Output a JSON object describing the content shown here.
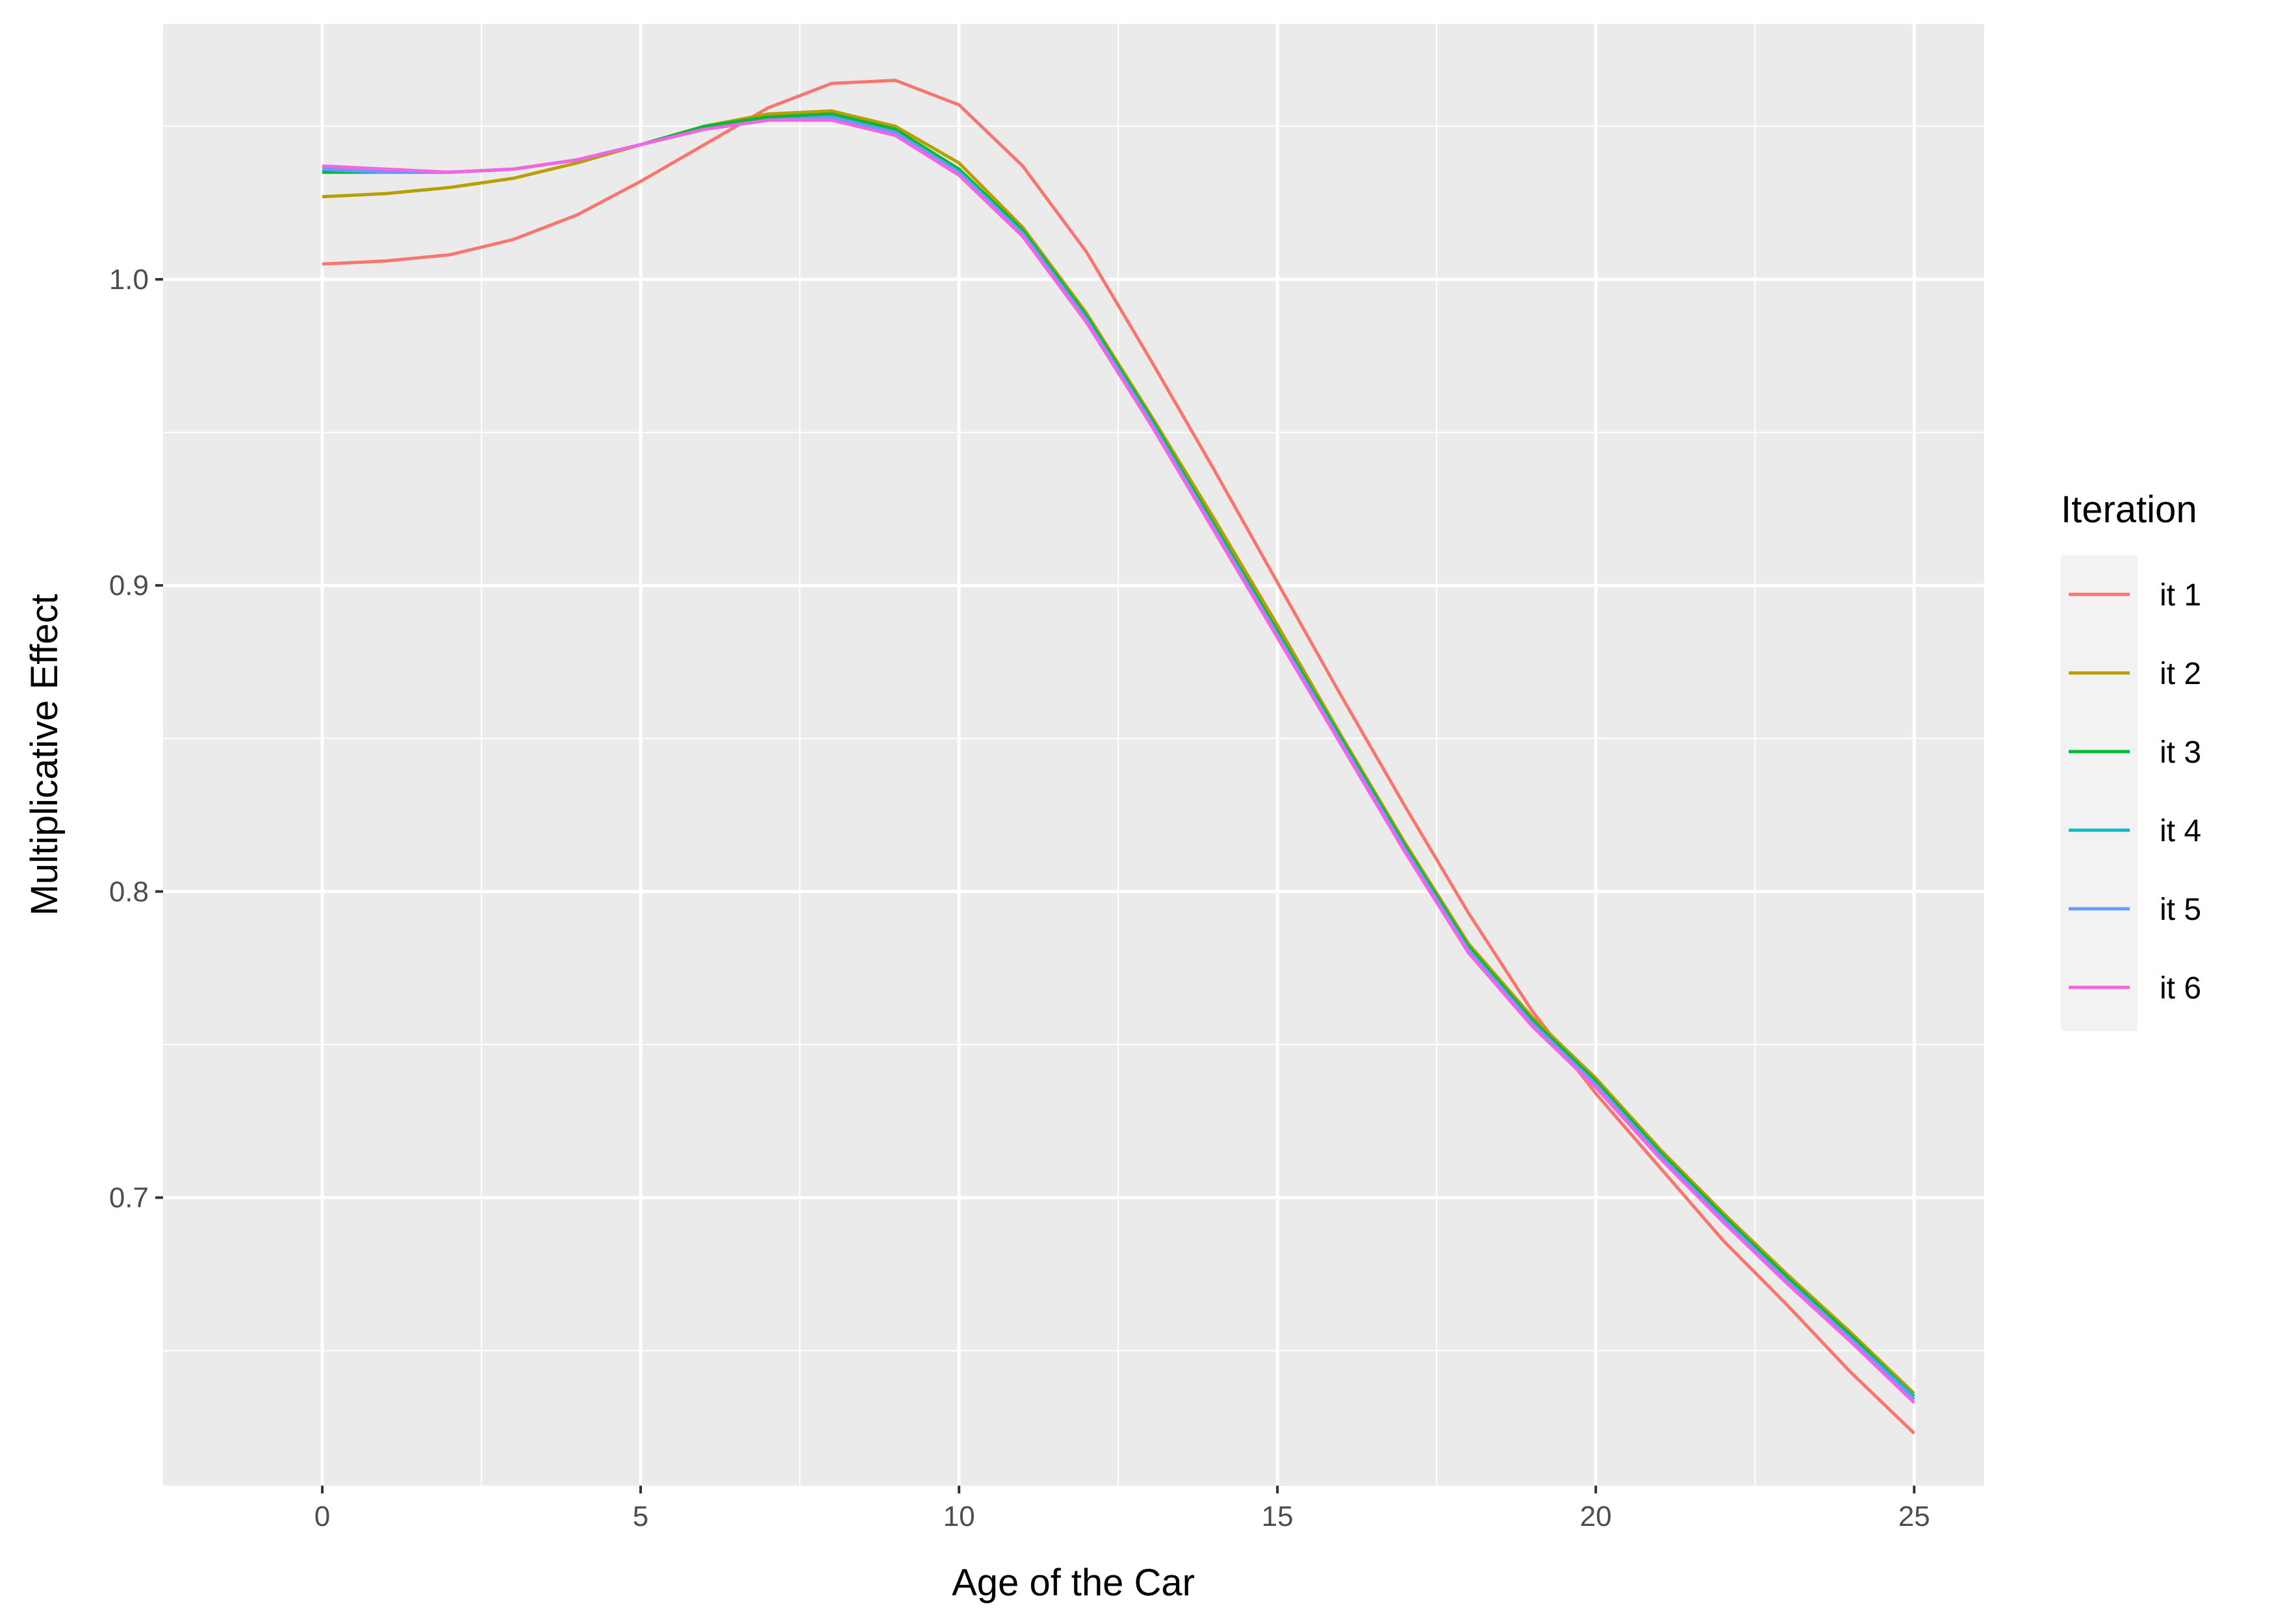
{
  "chart_data": {
    "type": "line",
    "title": "",
    "xlabel": "Age of the Car",
    "ylabel": "Multiplicative Effect",
    "xlim": [
      -2.5,
      26.1
    ],
    "ylim": [
      0.6059,
      1.0834
    ],
    "x_ticks": [
      "0",
      "5",
      "10",
      "15",
      "20",
      "25"
    ],
    "x_tick_values": [
      0,
      5,
      10,
      15,
      20,
      25
    ],
    "y_ticks": [
      "0.7",
      "0.8",
      "0.9",
      "1.0"
    ],
    "y_tick_values": [
      0.7,
      0.8,
      0.9,
      1.0
    ],
    "y_minor_values": [
      0.65,
      0.75,
      0.85,
      0.95,
      1.05
    ],
    "x_minor_values": [
      2.5,
      7.5,
      12.5,
      17.5,
      22.5
    ],
    "grid": true,
    "legend_title": "Iteration",
    "legend_position": "right",
    "x": [
      0,
      1,
      2,
      3,
      4,
      5,
      6,
      7,
      8,
      9,
      10,
      11,
      12,
      13,
      14,
      15,
      16,
      17,
      18,
      19,
      20,
      21,
      22,
      23,
      24,
      25
    ],
    "series": [
      {
        "name": "it 1",
        "color": "#F8766D",
        "values": [
          1.005,
          1.006,
          1.008,
          1.013,
          1.021,
          1.032,
          1.044,
          1.056,
          1.064,
          1.065,
          1.057,
          1.037,
          1.009,
          0.974,
          0.938,
          0.901,
          0.864,
          0.828,
          0.793,
          0.761,
          0.734,
          0.71,
          0.686,
          0.665,
          0.643,
          0.623
        ]
      },
      {
        "name": "it 2",
        "color": "#B79F00",
        "values": [
          1.027,
          1.028,
          1.03,
          1.033,
          1.038,
          1.044,
          1.05,
          1.054,
          1.055,
          1.05,
          1.038,
          1.017,
          0.989,
          0.956,
          0.922,
          0.887,
          0.851,
          0.816,
          0.783,
          0.759,
          0.739,
          0.716,
          0.695,
          0.675,
          0.656,
          0.636
        ]
      },
      {
        "name": "it 3",
        "color": "#00BA38",
        "values": [
          1.035,
          1.035,
          1.035,
          1.036,
          1.039,
          1.044,
          1.05,
          1.053,
          1.054,
          1.049,
          1.036,
          1.016,
          0.988,
          0.955,
          0.92,
          0.885,
          0.85,
          0.815,
          0.782,
          0.758,
          0.738,
          0.715,
          0.694,
          0.674,
          0.655,
          0.635
        ]
      },
      {
        "name": "it 4",
        "color": "#00BFC4",
        "values": [
          1.036,
          1.035,
          1.035,
          1.036,
          1.039,
          1.044,
          1.049,
          1.052,
          1.053,
          1.048,
          1.035,
          1.015,
          0.987,
          0.954,
          0.919,
          0.884,
          0.849,
          0.814,
          0.781,
          0.757,
          0.737,
          0.714,
          0.693,
          0.673,
          0.654,
          0.635
        ]
      },
      {
        "name": "it 5",
        "color": "#619CFF",
        "values": [
          1.036,
          1.035,
          1.035,
          1.036,
          1.039,
          1.044,
          1.049,
          1.052,
          1.053,
          1.048,
          1.035,
          1.015,
          0.987,
          0.954,
          0.919,
          0.884,
          0.849,
          0.814,
          0.781,
          0.757,
          0.737,
          0.714,
          0.693,
          0.673,
          0.654,
          0.634
        ]
      },
      {
        "name": "it 6",
        "color": "#F564E3",
        "values": [
          1.037,
          1.036,
          1.035,
          1.036,
          1.039,
          1.044,
          1.049,
          1.052,
          1.052,
          1.047,
          1.034,
          1.014,
          0.986,
          0.953,
          0.918,
          0.883,
          0.848,
          0.813,
          0.78,
          0.756,
          0.736,
          0.713,
          0.692,
          0.672,
          0.653,
          0.633
        ]
      }
    ]
  }
}
